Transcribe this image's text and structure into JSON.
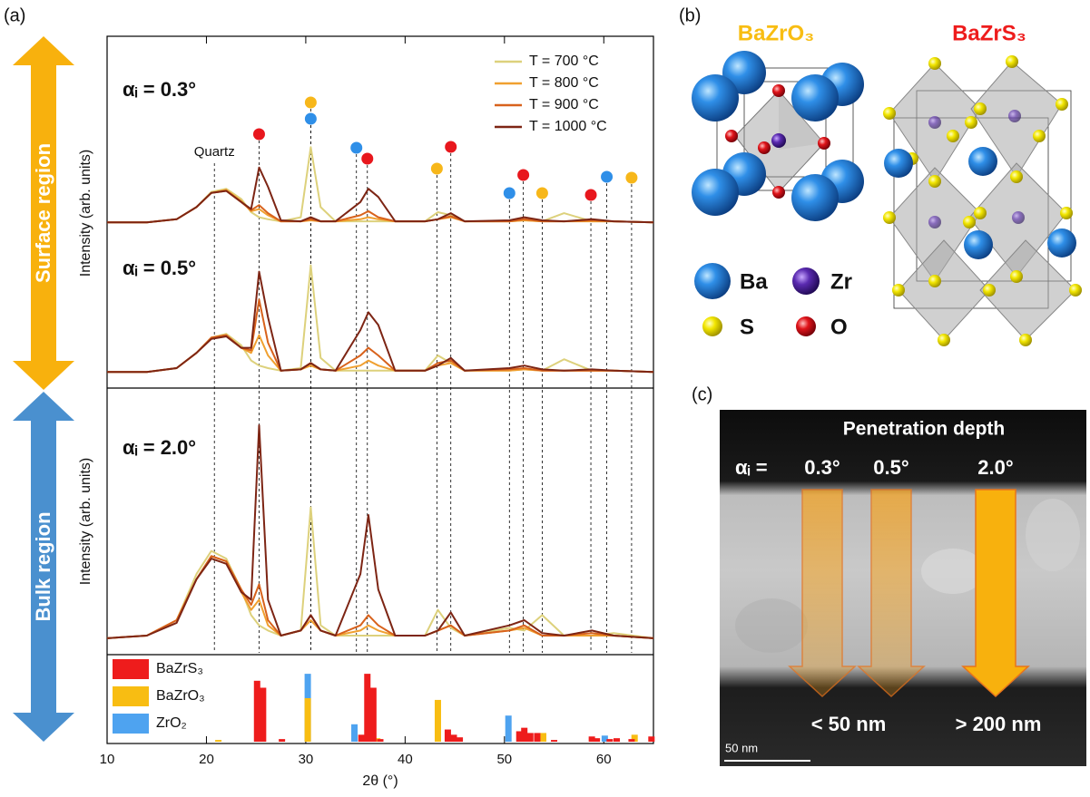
{
  "panel_labels": [
    "(a)",
    "(b)",
    "(c)"
  ],
  "side_labels": {
    "surface": "Surface region",
    "bulk": "Bulk region"
  },
  "y_label": "Intensity (arb. units)",
  "chart_data": [
    {
      "type": "line",
      "title": "αᵢ = 0.3°",
      "annotation": {
        "text": "Quartz",
        "x": 20.8
      },
      "x": [
        10,
        14,
        17,
        19,
        20.5,
        22,
        23.5,
        24.5,
        25.3,
        26.2,
        27.5,
        29.5,
        30.5,
        31.5,
        33,
        35.5,
        36.3,
        37.3,
        39,
        42,
        43.3,
        44.6,
        46,
        50.5,
        52,
        53.8,
        56,
        58.8,
        61,
        65
      ],
      "ylim": [
        0,
        100
      ],
      "series": [
        {
          "name": "T = 700 °C",
          "color": "#ddd17c",
          "values": [
            15,
            15,
            18,
            30,
            45,
            48,
            38,
            25,
            20,
            18,
            16,
            20,
            89,
            30,
            16,
            16,
            16,
            16,
            16,
            16,
            25,
            22,
            16,
            16,
            17,
            16,
            24,
            16,
            16,
            15
          ]
        },
        {
          "name": "T = 800 °C",
          "color": "#f0a030",
          "values": [
            15,
            15,
            18,
            30,
            44,
            47,
            36,
            26,
            28,
            22,
            16,
            16,
            17,
            16,
            16,
            18,
            20,
            18,
            16,
            16,
            18,
            20,
            16,
            16,
            17,
            16,
            16,
            16,
            16,
            15
          ]
        },
        {
          "name": "T = 900 °C",
          "color": "#d8621c",
          "values": [
            15,
            15,
            18,
            30,
            44,
            46,
            35,
            27,
            32,
            24,
            16,
            16,
            18,
            16,
            16,
            22,
            26,
            20,
            16,
            16,
            18,
            21,
            16,
            16,
            18,
            16,
            16,
            17,
            16,
            15
          ]
        },
        {
          "name": "T = 1000 °C",
          "color": "#7d2514",
          "values": [
            15,
            15,
            18,
            30,
            44,
            46,
            35,
            28,
            69,
            50,
            17,
            16,
            20,
            16,
            16,
            35,
            48,
            40,
            16,
            16,
            18,
            24,
            16,
            17,
            20,
            17,
            16,
            18,
            16,
            15
          ]
        }
      ],
      "markers": [
        {
          "x": 25.3,
          "color": "#e8171d"
        },
        {
          "x": 30.5,
          "color": "#f7b71a"
        },
        {
          "x": 30.5,
          "color": "#2f8fe8"
        },
        {
          "x": 35.1,
          "color": "#2f8fe8"
        },
        {
          "x": 36.2,
          "color": "#e8171d"
        },
        {
          "x": 43.2,
          "color": "#f7b71a"
        },
        {
          "x": 44.6,
          "color": "#e8171d"
        },
        {
          "x": 50.5,
          "color": "#2f8fe8"
        },
        {
          "x": 51.9,
          "color": "#e8171d"
        },
        {
          "x": 53.8,
          "color": "#f7b71a"
        },
        {
          "x": 58.7,
          "color": "#e8171d"
        },
        {
          "x": 60.3,
          "color": "#2f8fe8"
        },
        {
          "x": 62.8,
          "color": "#f7b71a"
        }
      ]
    },
    {
      "type": "line",
      "title": "αᵢ = 0.5°",
      "x": [
        10,
        14,
        17,
        19,
        20.5,
        22,
        23.5,
        24.5,
        25.3,
        26.2,
        27.5,
        29.5,
        30.5,
        31.5,
        33,
        35.5,
        36.3,
        37.3,
        39,
        42,
        43.3,
        44.6,
        46,
        50.5,
        52,
        53.8,
        56,
        58.8,
        61,
        65
      ],
      "ylim": [
        0,
        100
      ],
      "series": [
        {
          "color": "#ddd17c",
          "values": [
            7,
            7,
            10,
            22,
            34,
            37,
            28,
            16,
            12,
            10,
            8,
            10,
            91,
            18,
            8,
            8,
            8,
            8,
            8,
            8,
            20,
            14,
            8,
            8,
            9,
            8,
            17,
            8,
            8,
            7
          ]
        },
        {
          "color": "#f0a030",
          "values": [
            7,
            7,
            10,
            22,
            34,
            36,
            26,
            22,
            36,
            20,
            8,
            9,
            12,
            9,
            8,
            12,
            16,
            12,
            8,
            8,
            12,
            14,
            8,
            8,
            9,
            8,
            8,
            8,
            8,
            7
          ]
        },
        {
          "color": "#d8621c",
          "values": [
            7,
            7,
            10,
            22,
            34,
            36,
            26,
            24,
            64,
            30,
            8,
            9,
            14,
            9,
            8,
            20,
            26,
            20,
            8,
            8,
            14,
            16,
            8,
            9,
            10,
            8,
            8,
            8,
            8,
            7
          ]
        },
        {
          "color": "#7d2514",
          "values": [
            7,
            7,
            10,
            22,
            33,
            35,
            26,
            26,
            86,
            50,
            8,
            9,
            14,
            9,
            8,
            40,
            54,
            44,
            8,
            8,
            12,
            18,
            8,
            10,
            12,
            9,
            8,
            9,
            8,
            7
          ]
        }
      ]
    },
    {
      "type": "line",
      "title": "αᵢ = 2.0°",
      "x": [
        10,
        14,
        17,
        19,
        20.5,
        22,
        23.5,
        24.5,
        25.3,
        26.2,
        27.5,
        29.5,
        30.5,
        31.5,
        33,
        35.5,
        36.3,
        37.3,
        39,
        42,
        43.3,
        44.6,
        46,
        50.5,
        52,
        53.8,
        56,
        58.8,
        61,
        65
      ],
      "ylim": [
        0,
        100
      ],
      "series": [
        {
          "color": "#ddd17c",
          "values": [
            5,
            6,
            12,
            30,
            39,
            36,
            24,
            14,
            10,
            8,
            6,
            8,
            56,
            10,
            6,
            6,
            6,
            6,
            6,
            6,
            16,
            9,
            6,
            9,
            8,
            14,
            6,
            6,
            7,
            5
          ]
        },
        {
          "color": "#f0a030",
          "values": [
            5,
            6,
            12,
            28,
            37,
            35,
            23,
            16,
            20,
            10,
            6,
            8,
            12,
            8,
            6,
            8,
            10,
            8,
            6,
            6,
            8,
            10,
            6,
            8,
            9,
            6,
            6,
            6,
            6,
            5
          ]
        },
        {
          "color": "#d8621c",
          "values": [
            5,
            6,
            12,
            28,
            37,
            35,
            24,
            18,
            26,
            12,
            6,
            8,
            14,
            8,
            6,
            10,
            14,
            10,
            6,
            6,
            8,
            10,
            6,
            8,
            10,
            6,
            6,
            7,
            6,
            5
          ]
        },
        {
          "color": "#7d2514",
          "values": [
            5,
            6,
            11,
            28,
            36,
            34,
            23,
            20,
            88,
            20,
            6,
            8,
            14,
            8,
            6,
            30,
            53,
            24,
            6,
            6,
            8,
            15,
            6,
            10,
            12,
            7,
            6,
            8,
            6,
            5
          ]
        }
      ]
    },
    {
      "type": "bar",
      "x_label": "2θ (°)",
      "xlim": [
        10,
        65
      ],
      "xticks": [
        10,
        20,
        30,
        40,
        50,
        60
      ],
      "ylim": [
        0,
        100
      ],
      "series": [
        {
          "name": "ZrO₂",
          "color": "#4ea3f0",
          "x": [
            30.2,
            34.9,
            50.4,
            60.1
          ],
          "values": [
            78,
            20,
            30,
            7
          ]
        },
        {
          "name": "BaZrO₃",
          "color": "#f8bd12",
          "x": [
            21.2,
            30.2,
            37.2,
            43.3,
            53.9,
            63.1
          ],
          "values": [
            2,
            50,
            4,
            48,
            10,
            8
          ]
        },
        {
          "name": "BaZrS₃",
          "color": "#ee1c1c",
          "x": [
            25.1,
            25.7,
            27.6,
            35.6,
            36.2,
            36.8,
            37.5,
            44.3,
            44.9,
            45.5,
            51.5,
            52,
            52.6,
            53.3,
            55,
            58.8,
            59.3,
            60.6,
            61.3,
            62.8,
            64.8
          ],
          "values": [
            70,
            62,
            3,
            8,
            78,
            62,
            3,
            14,
            8,
            5,
            12,
            16,
            10,
            10,
            2,
            6,
            4,
            3,
            4,
            3,
            6
          ]
        }
      ]
    }
  ],
  "structures": {
    "oxide": "BaZrO₃",
    "sulfide": "BaZrS₃",
    "legend": [
      "Ba",
      "Zr",
      "S",
      "O"
    ]
  },
  "micrograph": {
    "title": "Penetration depth",
    "alpha": "αᵢ =",
    "angles": [
      "0.3°",
      "0.5°",
      "2.0°"
    ],
    "depths": [
      "< 50 nm",
      "> 200 nm"
    ],
    "scale_bar": "50 nm"
  }
}
